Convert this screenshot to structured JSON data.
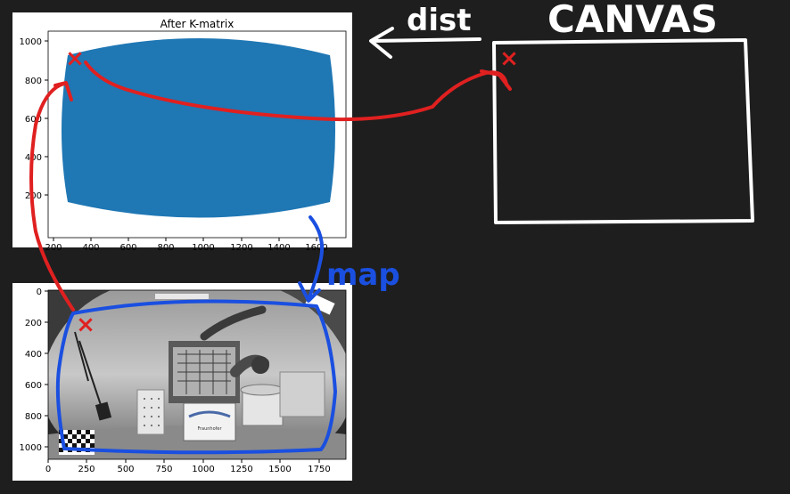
{
  "top_chart": {
    "title": "After K-matrix",
    "x_ticks": [
      "200",
      "400",
      "600",
      "800",
      "1000",
      "1200",
      "1400",
      "1600"
    ],
    "y_ticks": [
      "200",
      "400",
      "600",
      "800",
      "1000"
    ],
    "fill_color": "#1f77b4"
  },
  "bottom_chart": {
    "x_ticks": [
      "0",
      "250",
      "500",
      "750",
      "1000",
      "1250",
      "1500",
      "1750"
    ],
    "y_ticks": [
      "0",
      "200",
      "400",
      "600",
      "800",
      "1000"
    ],
    "image_labels": {
      "sign": "Fraunhofer"
    }
  },
  "annotations": {
    "dist_label": "dist",
    "canvas_label": "CANVAS",
    "map_label": "map",
    "marker": "×",
    "colors": {
      "red": "#e02020",
      "blue": "#1a4fe0",
      "white": "#ffffff"
    }
  }
}
